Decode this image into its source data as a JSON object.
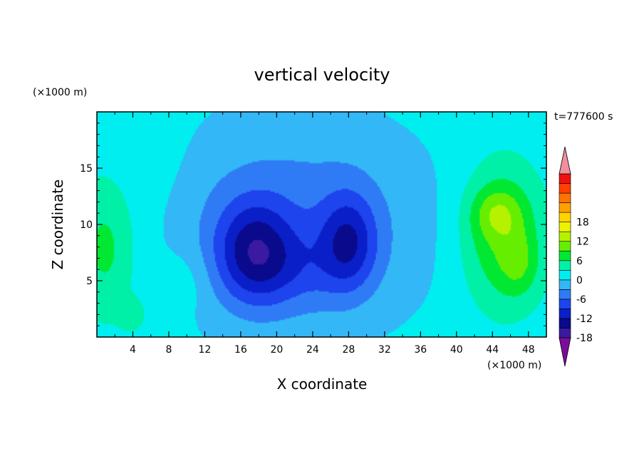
{
  "chart_data": {
    "type": "heatmap",
    "title": "vertical velocity",
    "xlabel": "X coordinate",
    "ylabel": "Z coordinate",
    "x_unit": "(×1000 m)",
    "y_unit": "(×1000 m)",
    "time_label": "t=777600 s",
    "xlim": [
      0,
      50
    ],
    "ylim": [
      0,
      20
    ],
    "x_ticks": [
      4,
      8,
      12,
      16,
      20,
      24,
      28,
      32,
      36,
      40,
      44,
      48
    ],
    "y_ticks": [
      5,
      10,
      15
    ],
    "colorbar": {
      "min": -21,
      "max": 21,
      "step": 3,
      "labels": [
        18,
        12,
        6,
        0,
        -6,
        -12,
        -18
      ],
      "colors": [
        "#7a0d9c",
        "#3a1aa0",
        "#0a0a8c",
        "#0b1fc8",
        "#1e44ee",
        "#2f7bf5",
        "#33b7f6",
        "#00eef0",
        "#00f0a8",
        "#00e832",
        "#66ee00",
        "#b6f200",
        "#eef200",
        "#ffd500",
        "#ffa000",
        "#ff7300",
        "#ff4000",
        "#f01010",
        "#f08f9a"
      ]
    },
    "field": {
      "background": 1.5,
      "features": [
        {
          "x": 22,
          "z": 10,
          "sx": 11,
          "sz": 7,
          "amp": -6
        },
        {
          "x": 17.5,
          "z": 7.5,
          "sx": 3,
          "sz": 3.2,
          "amp": -11
        },
        {
          "x": 28,
          "z": 8.5,
          "sx": 2.2,
          "sz": 3,
          "amp": -9
        },
        {
          "x": 23,
          "z": 6,
          "sx": 4,
          "sz": 2.5,
          "amp": -3
        },
        {
          "x": 45,
          "z": 9,
          "sx": 3.2,
          "sz": 4.5,
          "amp": 8
        },
        {
          "x": 44.5,
          "z": 11,
          "sx": 2,
          "sz": 1.6,
          "amp": 5
        },
        {
          "x": 47,
          "z": 6.5,
          "sx": 1.5,
          "sz": 2,
          "amp": 4
        },
        {
          "x": 1,
          "z": 8,
          "sx": 2.5,
          "sz": 4.5,
          "amp": 6
        },
        {
          "x": 4,
          "z": 2,
          "sx": 1,
          "sz": 1,
          "amp": 4
        },
        {
          "x": 10,
          "z": 5,
          "sx": 2,
          "sz": 2,
          "amp": 2
        },
        {
          "x": 8,
          "z": 14,
          "sx": 2.2,
          "sz": 6,
          "amp": 1
        }
      ]
    }
  }
}
